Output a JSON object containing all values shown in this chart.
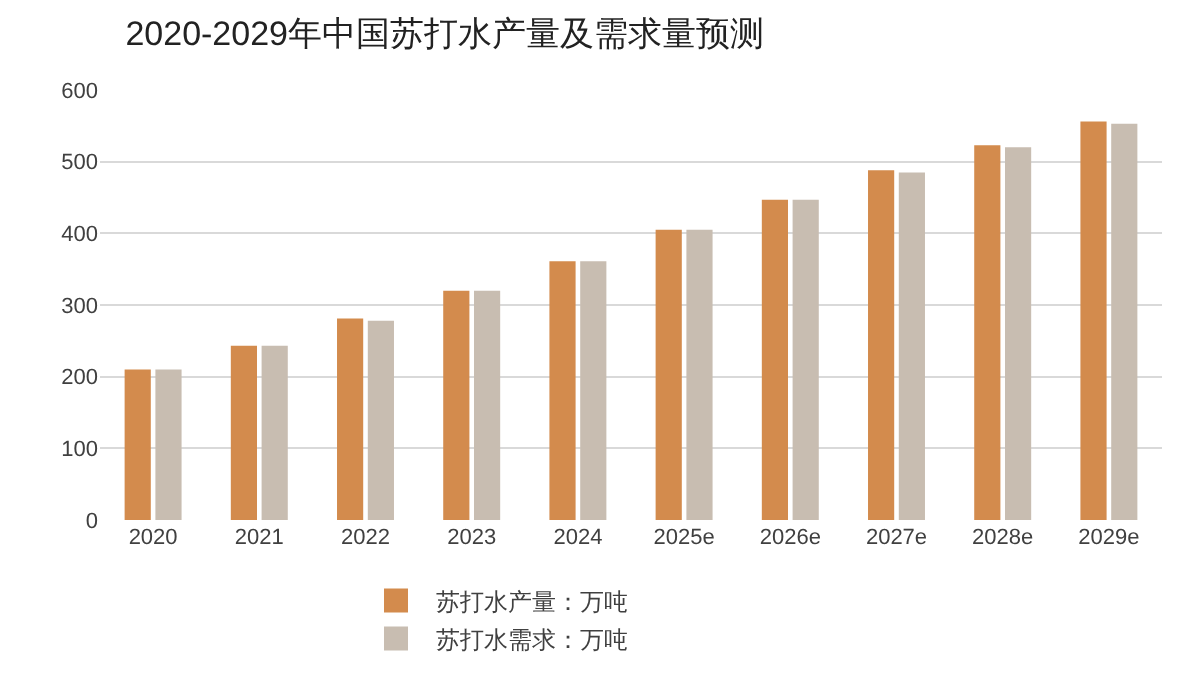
{
  "chart_data": {
    "type": "bar",
    "title": "2020-2029年中国苏打水产量及需求量预测",
    "categories": [
      "2020",
      "2021",
      "2022",
      "2023",
      "2024",
      "2025e",
      "2026e",
      "2027e",
      "2028e",
      "2029e"
    ],
    "series": [
      {
        "name": "苏打水产量：万吨",
        "color": "#d38b4d",
        "values": [
          210,
          243,
          281,
          320,
          361,
          405,
          447,
          488,
          523,
          556
        ]
      },
      {
        "name": "苏打水需求：万吨",
        "color": "#c8bdb1",
        "values": [
          210,
          243,
          278,
          320,
          361,
          405,
          447,
          485,
          520,
          553
        ]
      }
    ],
    "ylim": [
      0,
      600
    ],
    "yticks": [
      0,
      100,
      200,
      300,
      400,
      500,
      600
    ],
    "grid": "y",
    "legend": "bottom"
  }
}
